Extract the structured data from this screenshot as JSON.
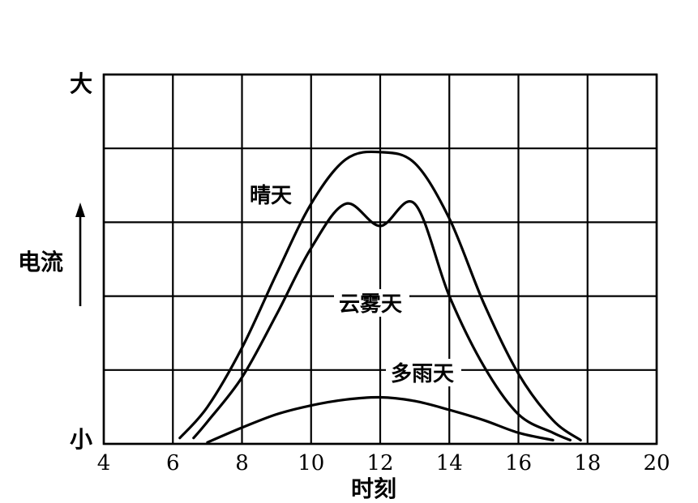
{
  "chart_data": {
    "type": "line",
    "xlabel": "时刻",
    "ylabel": "电流",
    "y_top_label": "大",
    "y_bottom_label": "小",
    "xlim": [
      4,
      20
    ],
    "ylim": [
      0,
      5
    ],
    "x_ticks": [
      4,
      6,
      8,
      10,
      12,
      14,
      16,
      18,
      20
    ],
    "y_gridlines": [
      0,
      1,
      2,
      3,
      4,
      5
    ],
    "grid": true,
    "series": [
      {
        "name": "晴天",
        "x": [
          6.2,
          7,
          8,
          9,
          10,
          11,
          12,
          13,
          14,
          15,
          16,
          17,
          17.8
        ],
        "y": [
          0.08,
          0.5,
          1.3,
          2.3,
          3.25,
          3.85,
          3.95,
          3.8,
          3.05,
          1.9,
          0.95,
          0.32,
          0.05
        ]
      },
      {
        "name": "云雾天",
        "x": [
          6.6,
          7,
          8,
          9,
          10,
          11,
          12,
          13,
          14,
          15,
          16,
          17,
          17.5
        ],
        "y": [
          0.08,
          0.3,
          0.9,
          1.75,
          2.65,
          3.25,
          2.95,
          3.25,
          2.0,
          1.05,
          0.4,
          0.15,
          0.05
        ]
      },
      {
        "name": "多雨天",
        "x": [
          7,
          8,
          9,
          10,
          11,
          12,
          13,
          14,
          15,
          16,
          17
        ],
        "y": [
          0.02,
          0.22,
          0.4,
          0.52,
          0.6,
          0.63,
          0.58,
          0.46,
          0.32,
          0.15,
          0.05
        ]
      }
    ]
  }
}
